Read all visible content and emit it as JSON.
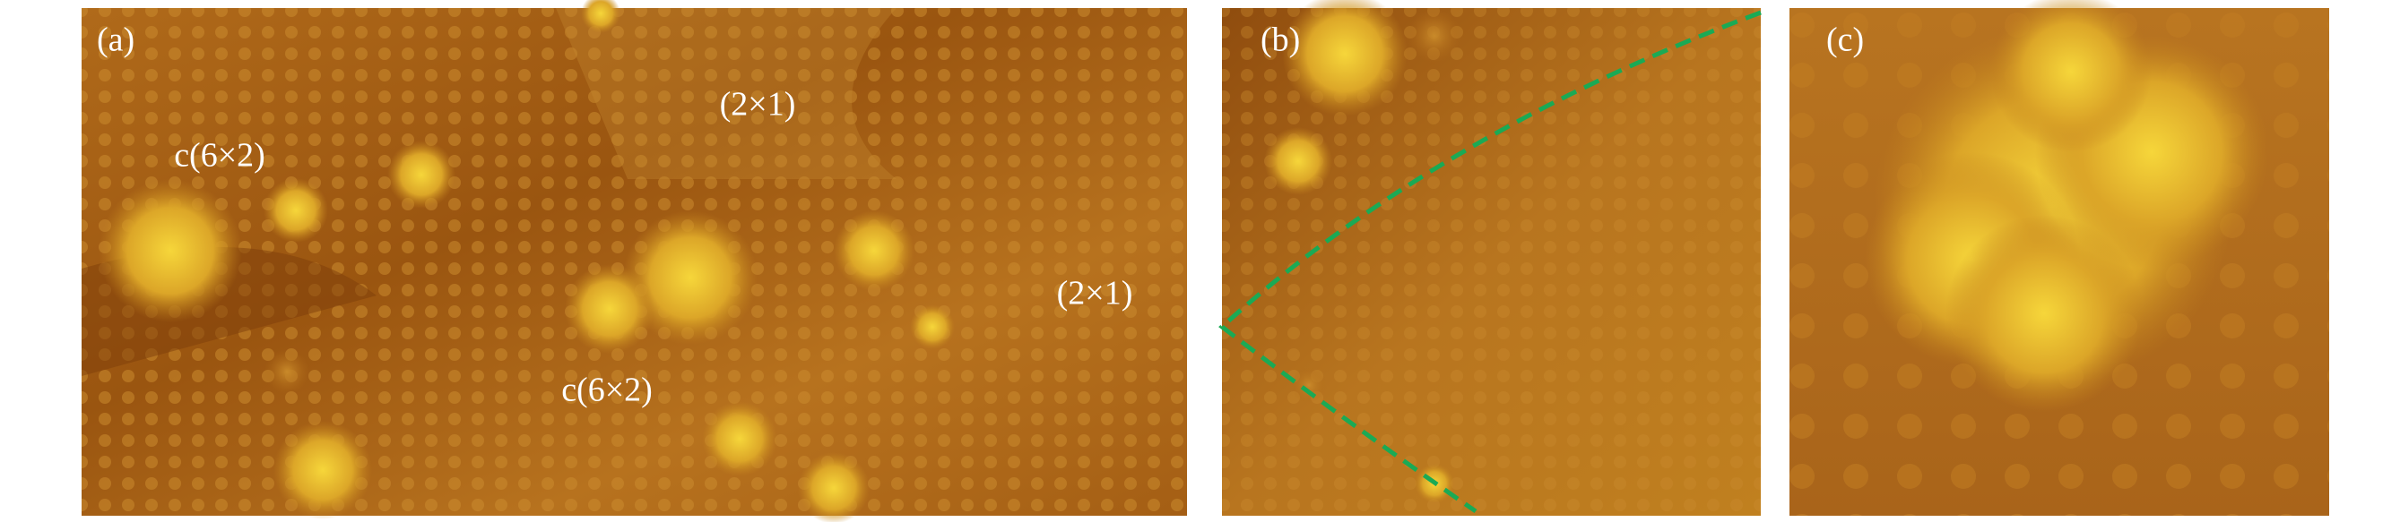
{
  "panels": [
    {
      "label": "(a)",
      "annotations": [
        "(2×1)",
        "c(6×2)",
        "(2×1)",
        "c(6×2)"
      ]
    },
    {
      "label": "(b)"
    },
    {
      "label": "(c)"
    }
  ]
}
